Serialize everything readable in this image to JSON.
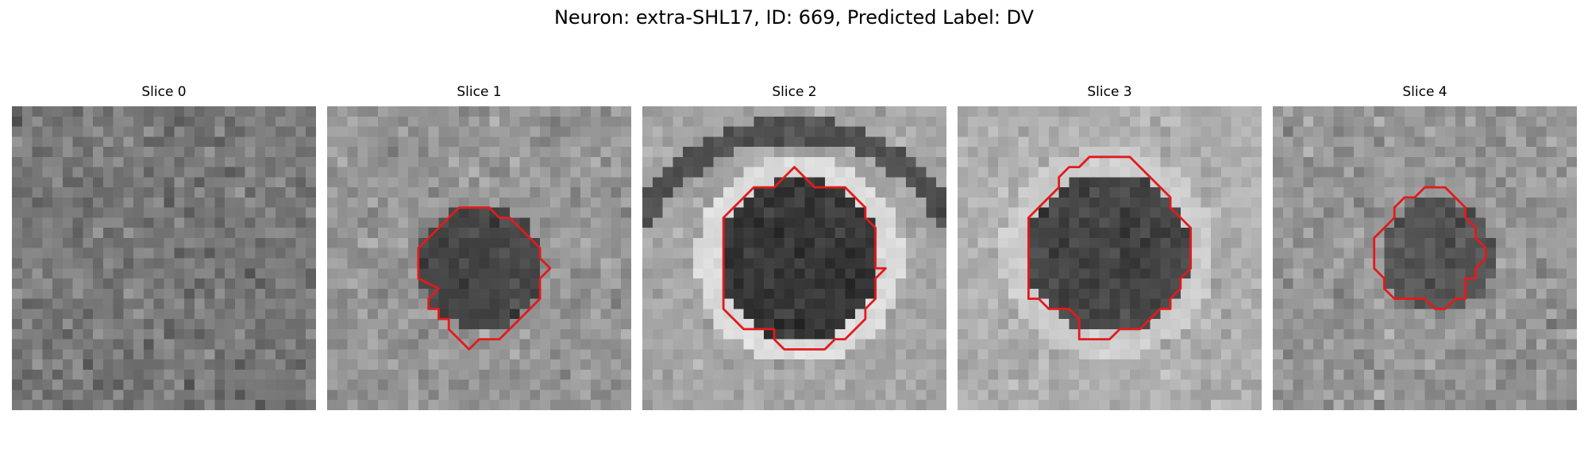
{
  "figure": {
    "title": "Neuron: extra-SHL17, ID: 669, Predicted Label: DV"
  },
  "colors": {
    "contour": "#e31a1c",
    "background": "#ffffff"
  },
  "slices": [
    {
      "title": "Slice 0",
      "has_contour": false
    },
    {
      "title": "Slice 1",
      "has_contour": true
    },
    {
      "title": "Slice 2",
      "has_contour": true
    },
    {
      "title": "Slice 3",
      "has_contour": true
    },
    {
      "title": "Slice 4",
      "has_contour": true
    }
  ]
}
